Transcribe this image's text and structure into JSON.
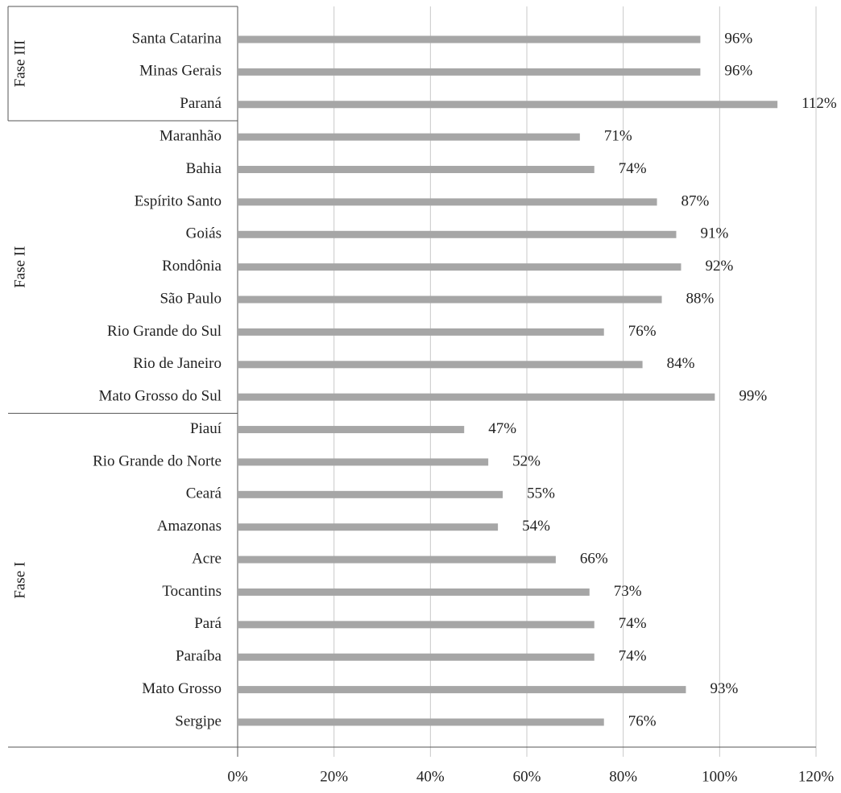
{
  "chart_data": {
    "type": "bar",
    "orientation": "horizontal",
    "color": "#a6a6a6",
    "categories": [
      "Santa Catarina",
      "Minas Gerais",
      "Paraná",
      "Maranhão",
      "Bahia",
      "Espírito Santo",
      "Goiás",
      "Rondônia",
      "São Paulo",
      "Rio Grande do Sul",
      "Rio de Janeiro",
      "Mato Grosso do Sul",
      "Piauí",
      "Rio Grande do Norte",
      "Ceará",
      "Amazonas",
      "Acre",
      "Tocantins",
      "Pará",
      "Paraíba",
      "Mato Grosso",
      "Sergipe"
    ],
    "values": [
      96,
      96,
      112,
      71,
      74,
      87,
      91,
      92,
      88,
      76,
      84,
      99,
      47,
      52,
      55,
      54,
      66,
      73,
      74,
      74,
      93,
      76
    ],
    "value_labels": [
      "96%",
      "96%",
      "112%",
      "71%",
      "74%",
      "87%",
      "91%",
      "92%",
      "88%",
      "76%",
      "84%",
      "99%",
      "47%",
      "52%",
      "55%",
      "54%",
      "66%",
      "73%",
      "74%",
      "74%",
      "93%",
      "76%"
    ],
    "groups": [
      {
        "name": "Fase III",
        "size": 3
      },
      {
        "name": "Fase II",
        "size": 9
      },
      {
        "name": "Fase I",
        "size": 10
      }
    ],
    "xlim": [
      0,
      120
    ],
    "xticks": [
      {
        "value": 0,
        "label": "0%"
      },
      {
        "value": 20,
        "label": "20%"
      },
      {
        "value": 40,
        "label": "40%"
      },
      {
        "value": 60,
        "label": "60%"
      },
      {
        "value": 80,
        "label": "80%"
      },
      {
        "value": 100,
        "label": "100%"
      },
      {
        "value": 120,
        "label": "120%"
      }
    ],
    "grid": true
  }
}
